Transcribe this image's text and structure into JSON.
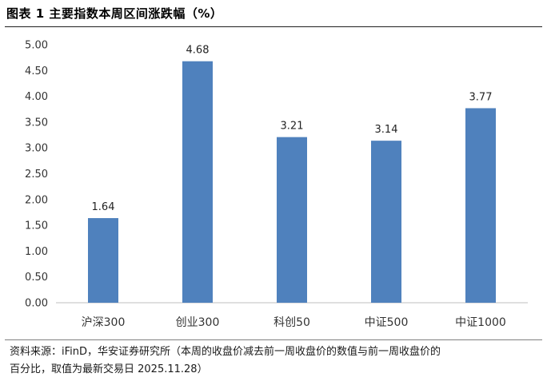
{
  "title": "图表 1  主要指数本周区间涨跌幅（%）",
  "source": {
    "line1": "资料来源：iFinD，华安证券研究所（本周的收盘价减去前一周收盘价的数值与前一周收盘价的",
    "line2": "百分比，取值为最新交易日 2025.11.28）"
  },
  "colors": {
    "bar": "#4f81bd",
    "axis": "#bfbfbf"
  },
  "chart_data": {
    "type": "bar",
    "title": "",
    "xlabel": "",
    "ylabel": "",
    "categories": [
      "沪深300",
      "创业300",
      "科创50",
      "中证500",
      "中证1000"
    ],
    "values": [
      1.64,
      4.68,
      3.21,
      3.14,
      3.77
    ],
    "data_labels": [
      "1.64",
      "4.68",
      "3.21",
      "3.14",
      "3.77"
    ],
    "ylim": [
      0,
      5
    ],
    "yticks": [
      "0.00",
      "0.50",
      "1.00",
      "1.50",
      "2.00",
      "2.50",
      "3.00",
      "3.50",
      "4.00",
      "4.50",
      "5.00"
    ],
    "grid": false,
    "legend": "none"
  }
}
